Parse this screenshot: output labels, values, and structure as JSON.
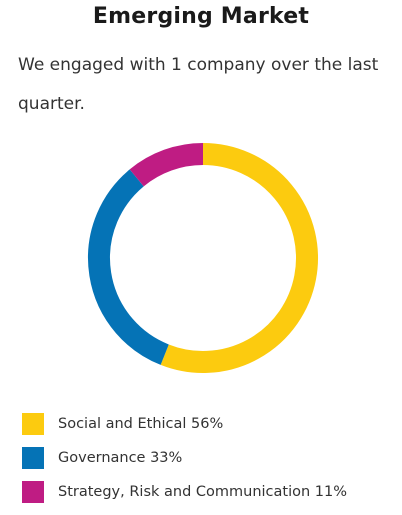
{
  "title": "Emerging Market",
  "subtitle": "We engaged with 1 company over the last quarter.",
  "chart_data": {
    "type": "pie",
    "style": "donut",
    "title": "Emerging Market",
    "categories": [
      "Social and Ethical",
      "Governance",
      "Strategy, Risk and Communication"
    ],
    "values": [
      56,
      33,
      11
    ],
    "unit": "%",
    "colors": [
      "#fccb0f",
      "#0573b6",
      "#bf1c83"
    ],
    "start_angle_deg": 0,
    "direction": "clockwise",
    "legend_position": "bottom-left",
    "legend": [
      {
        "label": "Social and Ethical 56%",
        "color": "#fccb0f"
      },
      {
        "label": "Governance 33%",
        "color": "#0573b6"
      },
      {
        "label": "Strategy, Risk and Communication 11%",
        "color": "#bf1c83"
      }
    ]
  }
}
